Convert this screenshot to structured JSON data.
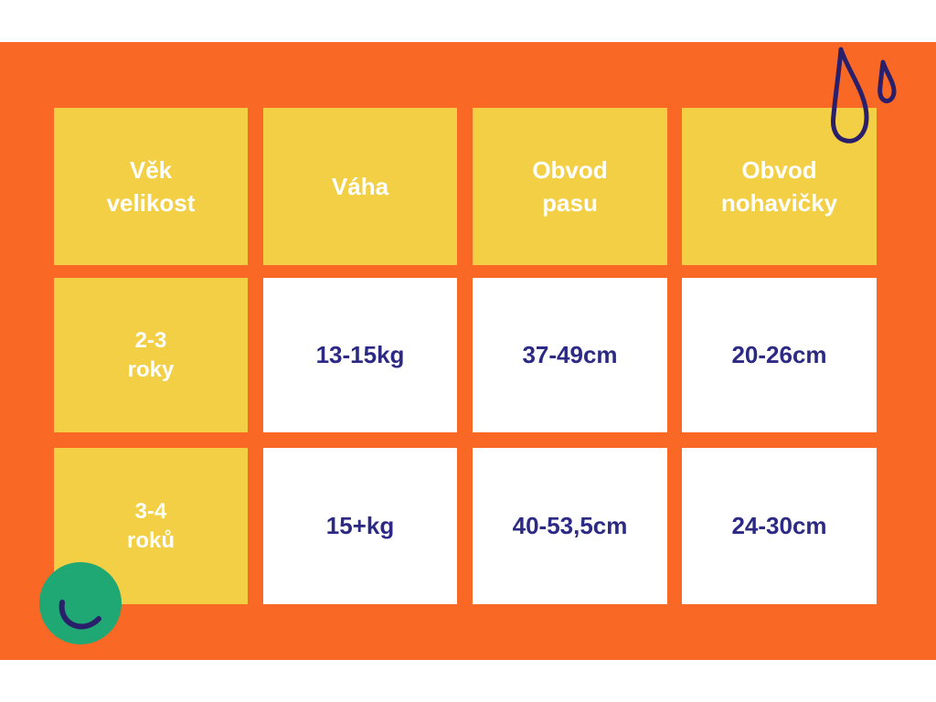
{
  "table": {
    "headers": [
      "Věk\nvelikost",
      "Váha",
      "Obvod\npasu",
      "Obvod\nnohavičky"
    ],
    "rows": [
      {
        "age": "2-3\nroky",
        "weight": "13-15kg",
        "waist": "37-49cm",
        "leg": "20-26cm"
      },
      {
        "age": "3-4\nroků",
        "weight": "15+kg",
        "waist": "40-53,5cm",
        "leg": "24-30cm"
      }
    ]
  },
  "colors": {
    "background": "#fa6826",
    "header": "#f2cf44",
    "text_dark": "#2c2a84",
    "accent_green": "#1fa774"
  },
  "icons": [
    "water-drops-icon",
    "smile-circle-icon"
  ]
}
